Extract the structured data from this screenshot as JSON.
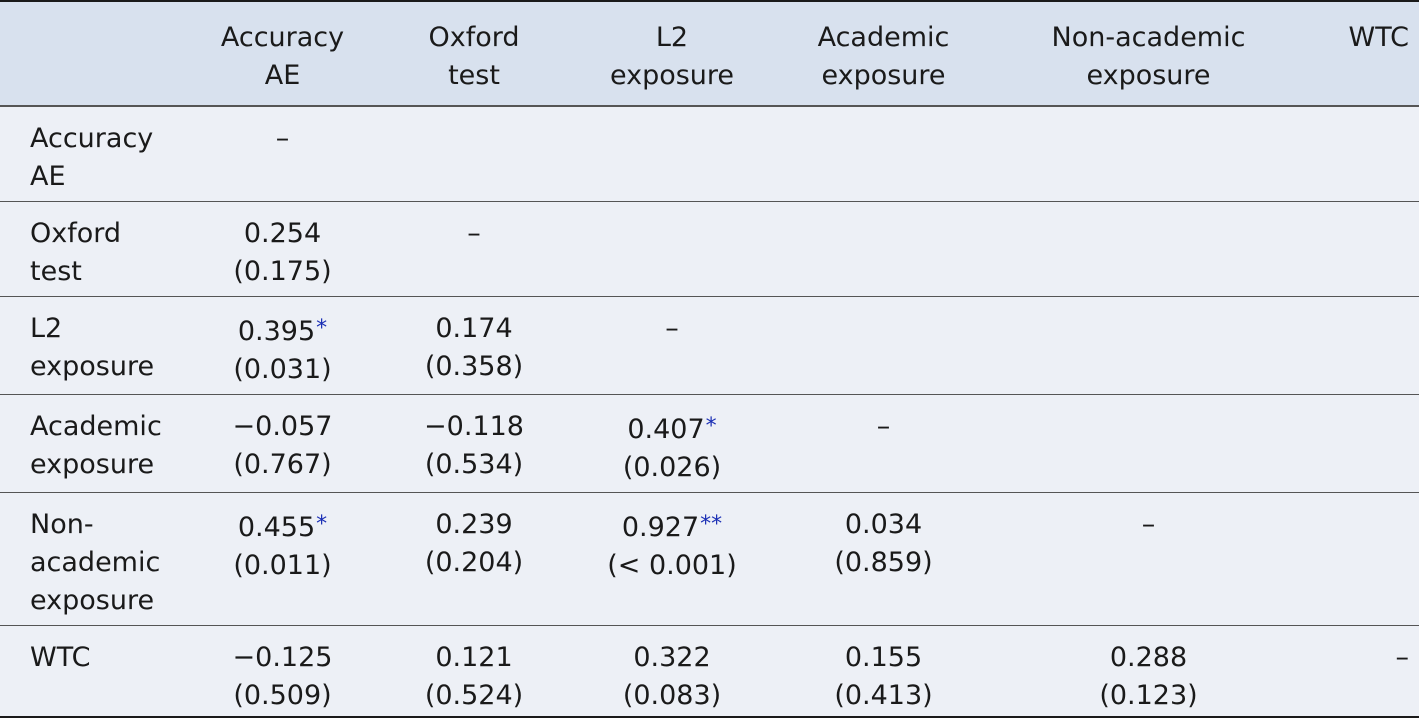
{
  "table": {
    "headers": [
      [
        "",
        ""
      ],
      [
        "Accuracy",
        "AE"
      ],
      [
        "Oxford",
        "test"
      ],
      [
        "L2",
        "exposure"
      ],
      [
        "Academic",
        "exposure"
      ],
      [
        "Non-academic",
        "exposure"
      ],
      [
        "WTC",
        ""
      ]
    ],
    "rows": [
      {
        "label": [
          "Accuracy",
          "AE",
          ""
        ],
        "cells": [
          {
            "r": "–",
            "sig": "",
            "p": ""
          },
          {
            "r": "",
            "sig": "",
            "p": ""
          },
          {
            "r": "",
            "sig": "",
            "p": ""
          },
          {
            "r": "",
            "sig": "",
            "p": ""
          },
          {
            "r": "",
            "sig": "",
            "p": ""
          },
          {
            "r": "",
            "sig": "",
            "p": ""
          }
        ]
      },
      {
        "label": [
          "Oxford",
          "test",
          ""
        ],
        "cells": [
          {
            "r": "0.254",
            "sig": "",
            "p": "(0.175)"
          },
          {
            "r": "–",
            "sig": "",
            "p": ""
          },
          {
            "r": "",
            "sig": "",
            "p": ""
          },
          {
            "r": "",
            "sig": "",
            "p": ""
          },
          {
            "r": "",
            "sig": "",
            "p": ""
          },
          {
            "r": "",
            "sig": "",
            "p": ""
          }
        ]
      },
      {
        "label": [
          "L2",
          "exposure",
          ""
        ],
        "cells": [
          {
            "r": "0.395",
            "sig": "*",
            "p": "(0.031)"
          },
          {
            "r": "0.174",
            "sig": "",
            "p": "(0.358)"
          },
          {
            "r": "–",
            "sig": "",
            "p": ""
          },
          {
            "r": "",
            "sig": "",
            "p": ""
          },
          {
            "r": "",
            "sig": "",
            "p": ""
          },
          {
            "r": "",
            "sig": "",
            "p": ""
          }
        ]
      },
      {
        "label": [
          "Academic",
          "exposure",
          ""
        ],
        "cells": [
          {
            "r": "−0.057",
            "sig": "",
            "p": "(0.767)"
          },
          {
            "r": "−0.118",
            "sig": "",
            "p": "(0.534)"
          },
          {
            "r": "0.407",
            "sig": "*",
            "p": "(0.026)"
          },
          {
            "r": "–",
            "sig": "",
            "p": ""
          },
          {
            "r": "",
            "sig": "",
            "p": ""
          },
          {
            "r": "",
            "sig": "",
            "p": ""
          }
        ]
      },
      {
        "label": [
          "Non-",
          "academic",
          "exposure"
        ],
        "cells": [
          {
            "r": "0.455",
            "sig": "*",
            "p": "(0.011)"
          },
          {
            "r": "0.239",
            "sig": "",
            "p": "(0.204)"
          },
          {
            "r": "0.927",
            "sig": "**",
            "p": "(< 0.001)"
          },
          {
            "r": "0.034",
            "sig": "",
            "p": "(0.859)"
          },
          {
            "r": "–",
            "sig": "",
            "p": ""
          },
          {
            "r": "",
            "sig": "",
            "p": ""
          }
        ]
      },
      {
        "label": [
          "WTC",
          "",
          ""
        ],
        "cells": [
          {
            "r": "−0.125",
            "sig": "",
            "p": "(0.509)"
          },
          {
            "r": "0.121",
            "sig": "",
            "p": "(0.524)"
          },
          {
            "r": "0.322",
            "sig": "",
            "p": "(0.083)"
          },
          {
            "r": "0.155",
            "sig": "",
            "p": "(0.413)"
          },
          {
            "r": "0.288",
            "sig": "",
            "p": "(0.123)"
          },
          {
            "r": "–",
            "sig": "",
            "p": ""
          }
        ]
      }
    ]
  }
}
